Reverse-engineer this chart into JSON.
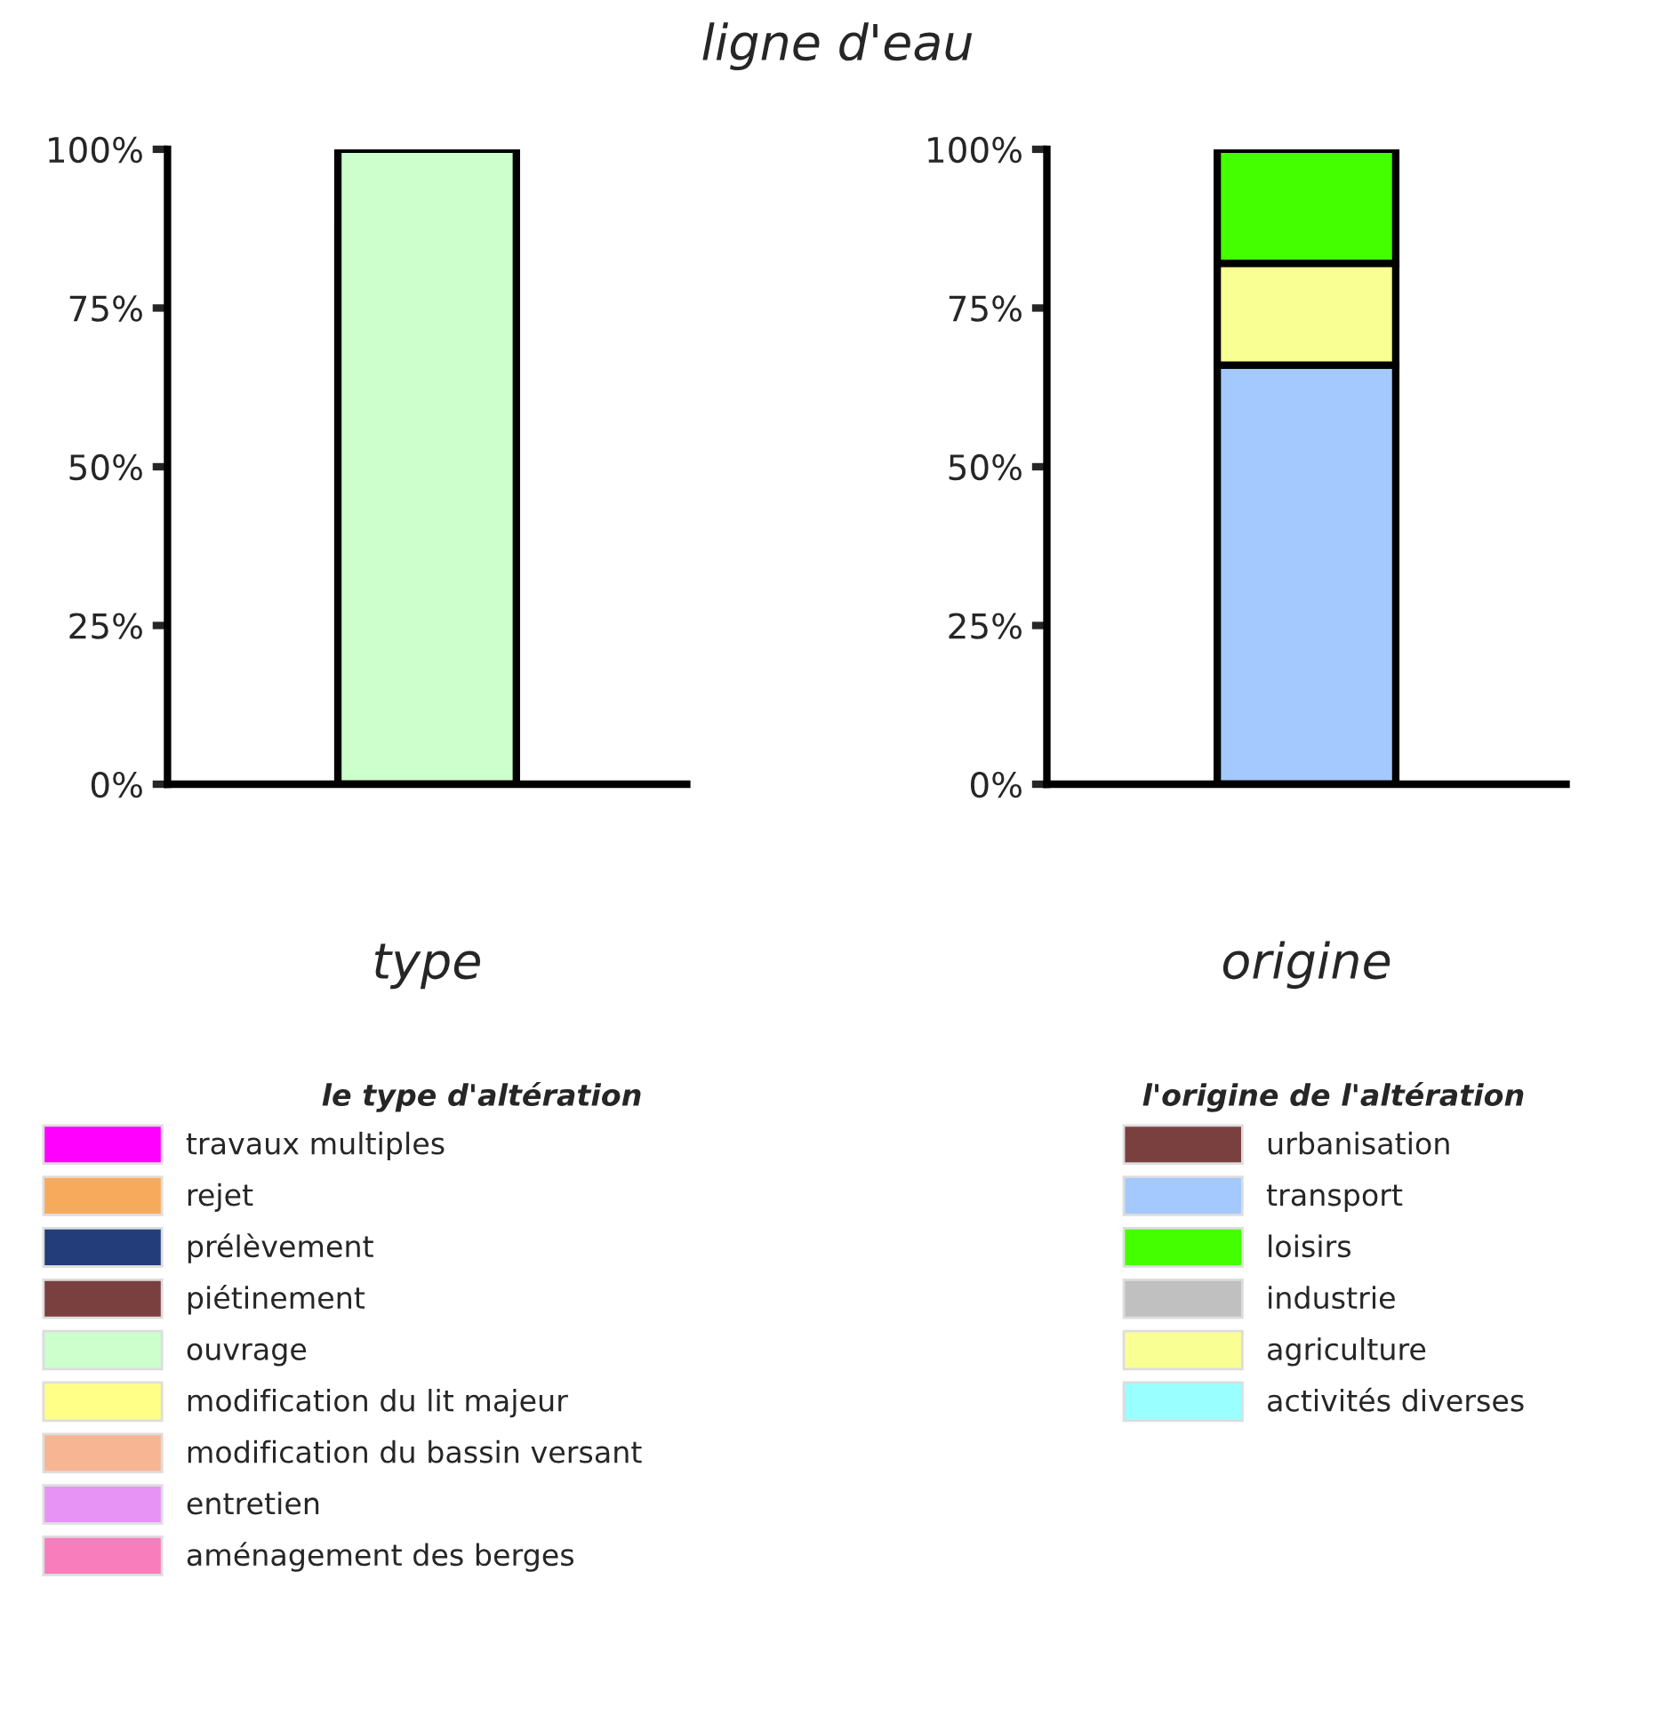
{
  "chart_data": [
    {
      "type": "bar",
      "title": "ligne d'eau",
      "xlabel": "type",
      "legend_title": "le type d'altération",
      "legend": "bottom",
      "categories": [
        null
      ],
      "ylim": [
        0,
        100
      ],
      "yticks": [
        {
          "value": 0,
          "label": "0%"
        },
        {
          "value": 25,
          "label": "25%"
        },
        {
          "value": 50,
          "label": "50%"
        },
        {
          "value": 75,
          "label": "75%"
        },
        {
          "value": 100,
          "label": "100%"
        }
      ],
      "series": [
        {
          "name": "travaux multiples",
          "color": "#ff00ff",
          "values": [
            null
          ],
          "base": [
            null
          ]
        },
        {
          "name": "rejet",
          "color": "#f7aa5c",
          "values": [
            null
          ],
          "base": [
            null
          ]
        },
        {
          "name": "prélèvement",
          "color": "#223d7a",
          "values": [
            null
          ],
          "base": [
            null
          ]
        },
        {
          "name": "piétinement",
          "color": "#7a3f3f",
          "values": [
            null
          ],
          "base": [
            null
          ]
        },
        {
          "name": "ouvrage",
          "color": "#ccffcc",
          "values": [
            100
          ],
          "base": [
            0
          ]
        },
        {
          "name": "modification du lit majeur",
          "color": "#ffff88",
          "values": [
            null
          ],
          "base": [
            null
          ]
        },
        {
          "name": "modification du bassin versant",
          "color": "#f7b594",
          "values": [
            null
          ],
          "base": [
            null
          ]
        },
        {
          "name": "entretien",
          "color": "#e693f5",
          "values": [
            null
          ],
          "base": [
            null
          ]
        },
        {
          "name": "aménagement des berges",
          "color": "#f77dbd",
          "values": [
            null
          ],
          "base": [
            null
          ]
        }
      ]
    },
    {
      "type": "bar",
      "xlabel": "origine",
      "legend_title": "l'origine de l'altération",
      "legend": "bottom",
      "categories": [
        null
      ],
      "ylim": [
        0,
        100
      ],
      "yticks": [
        {
          "value": 0,
          "label": "0%"
        },
        {
          "value": 25,
          "label": "25%"
        },
        {
          "value": 50,
          "label": "50%"
        },
        {
          "value": 75,
          "label": "75%"
        },
        {
          "value": 100,
          "label": "100%"
        }
      ],
      "series": [
        {
          "name": "urbanisation",
          "color": "#7a3f3f",
          "values": [
            null
          ],
          "base": [
            null
          ]
        },
        {
          "name": "transport",
          "color": "#a3c9ff",
          "values": [
            66
          ],
          "base": [
            0
          ]
        },
        {
          "name": "loisirs",
          "color": "#44ff00",
          "values": [
            18
          ],
          "base": [
            82
          ]
        },
        {
          "name": "industrie",
          "color": "#c0c0c0",
          "values": [
            null
          ],
          "base": [
            null
          ]
        },
        {
          "name": "agriculture",
          "color": "#f9ff93",
          "values": [
            16
          ],
          "base": [
            66
          ]
        },
        {
          "name": "activités diverses",
          "color": "#99ffff",
          "values": [
            null
          ],
          "base": [
            null
          ]
        }
      ]
    }
  ]
}
